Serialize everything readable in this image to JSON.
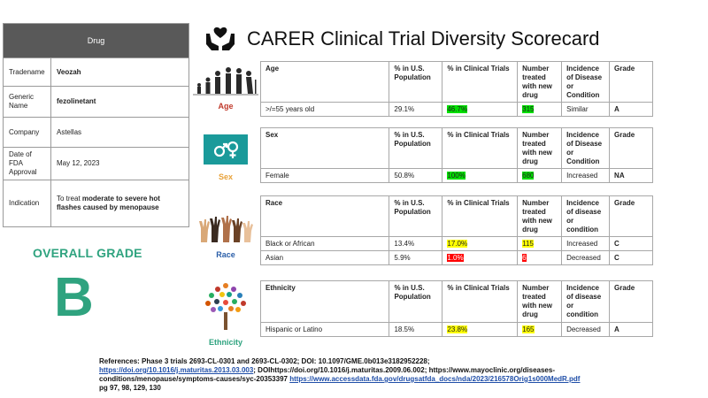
{
  "drug_card": {
    "header": "Drug",
    "rows": [
      {
        "label": "Tradename",
        "value": "Veozah"
      },
      {
        "label": "Generic Name",
        "value": "fezolinetant"
      },
      {
        "label": "Company",
        "value": "Astellas"
      },
      {
        "label": "Date of FDA Approval",
        "value": "May 12, 2023"
      }
    ],
    "indication": {
      "label": "Indication",
      "prefix": "To treat ",
      "bold": "moderate to severe hot flashes caused by menopause"
    }
  },
  "overall": {
    "title": "OVERALL GRADE",
    "grade": "B"
  },
  "title": "CARER Clinical Trial Diversity Scorecard",
  "categories": {
    "age": {
      "icon_label": "Age",
      "headers": [
        "Age",
        "% in U.S. Population",
        "% in Clinical Trials",
        "Number treated with new drug",
        "Incidence of Disease or Condition",
        "Grade"
      ],
      "rows": [
        {
          "group": ">/=55 years old",
          "population": "29.1%",
          "trials": "46.7%",
          "treated": "315",
          "incidence": "Similar",
          "grade": "A"
        }
      ]
    },
    "sex": {
      "icon_label": "Sex",
      "headers": [
        "Sex",
        "% in U.S. Population",
        "% in Clinical Trials",
        "Number treated with new drug",
        "Incidence of Disease or Condition",
        "Grade"
      ],
      "rows": [
        {
          "group": "Female",
          "population": "50.8%",
          "trials": "100%",
          "treated": "680",
          "incidence": "Increased",
          "grade": "NA"
        }
      ]
    },
    "race": {
      "icon_label": "Race",
      "headers": [
        "Race",
        "% in U.S. Population",
        "% in Clinical Trials",
        "Number treated with new drug",
        "Incidence of disease or condition",
        "Grade"
      ],
      "rows": [
        {
          "group": "Black or African",
          "population": "13.4%",
          "trials": "17.0%",
          "treated": "115",
          "incidence": "Increased",
          "grade": "C"
        },
        {
          "group": "Asian",
          "population": "5.9%",
          "trials": "1.0%",
          "treated": "6",
          "incidence": "Decreased",
          "grade": "C"
        }
      ]
    },
    "ethnicity": {
      "icon_label": "Ethnicity",
      "headers": [
        "Ethnicity",
        "% in U.S. Population",
        "% in Clinical Trials",
        "Number treated with new drug",
        "Incidence of disease or condition",
        "Grade"
      ],
      "rows": [
        {
          "group": "Hispanic or Latino",
          "population": "18.5%",
          "trials": "23.8%",
          "treated": "165",
          "incidence": "Decreased",
          "grade": "A"
        }
      ]
    }
  },
  "references": {
    "part1": "References: Phase 3 trials  2693-CL-0301 and 2693-CL-0302; DOI: 10.1097/GME.0b013e3182952228;",
    "link1": "https://doi.org/10.1016/j.maturitas.2013.03.003",
    "part2": "; DOIhttps://doi.org/10.1016/j.maturitas.2009.06.002; https://www.mayoclinic.org/diseases-conditions/menopause/symptoms-causes/syc-20353397 ",
    "link2": "https://www.accessdata.fda.gov/drugsatfda_docs/nda/2023/216578Orig1s000MedR.pdf",
    "part3": "pg 97, 98, 129, 130"
  },
  "colors": {
    "accent_green": "#2fa37f",
    "highlight_green": "#00e000",
    "highlight_yellow": "#ffff00",
    "highlight_red": "#ff0000",
    "header_gray": "#595959",
    "sex_teal": "#1a9a9a",
    "age_red": "#c0392b",
    "sex_orange": "#e8a23a",
    "race_blue": "#2a5ea8",
    "ethnicity_green": "#2fa37f"
  },
  "icons": [
    "hands-heart-icon",
    "age-evolution-icon",
    "gender-symbols-icon",
    "raised-hands-icon",
    "people-tree-icon"
  ]
}
